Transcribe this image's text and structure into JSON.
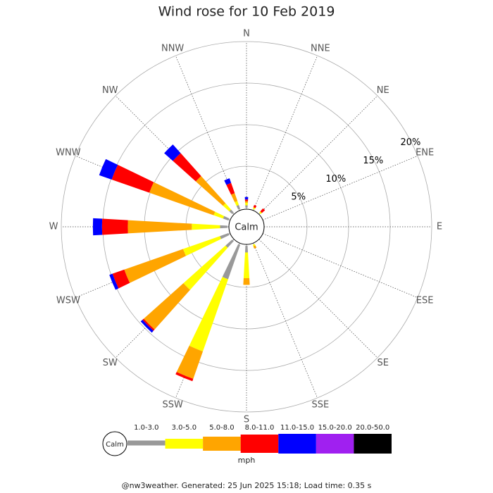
{
  "chart_data": {
    "type": "windrose",
    "title": "Wind rose for 10 Feb 2019",
    "calm_label": "Calm",
    "categories": [
      "N",
      "NNE",
      "NE",
      "ENE",
      "E",
      "ESE",
      "SE",
      "SSE",
      "S",
      "SSW",
      "SW",
      "WSW",
      "W",
      "WNW",
      "NW",
      "NNW"
    ],
    "series": [
      {
        "name": "1.0-3.0",
        "color": "#999999",
        "values": [
          0.3,
          0,
          0,
          0,
          0,
          0,
          0,
          0,
          0.8,
          4.4,
          1.1,
          1.1,
          0.9,
          0.7,
          0.5,
          0.5
        ]
      },
      {
        "name": "3.0-5.0",
        "color": "#ffff00",
        "values": [
          0.3,
          0.2,
          0.2,
          0,
          0,
          0,
          0,
          0.2,
          3.1,
          9.2,
          6.8,
          4.7,
          3.4,
          1.2,
          1.0,
          0.5
        ]
      },
      {
        "name": "5.0-8.0",
        "color": "#ffa500",
        "values": [
          0.2,
          0,
          0,
          0,
          0,
          0,
          0,
          0.3,
          0.8,
          3.5,
          6.4,
          7.5,
          7.7,
          8.2,
          4.4,
          1.0
        ]
      },
      {
        "name": "8.0-11.0",
        "color": "#ff0000",
        "values": [
          0.2,
          0.3,
          0.5,
          0,
          0,
          0,
          0,
          0,
          0,
          0.3,
          0.2,
          1.5,
          3.1,
          4.8,
          3.7,
          1.3
        ]
      },
      {
        "name": "11.0-15.0",
        "color": "#0000ff",
        "values": [
          0.3,
          0,
          0,
          0,
          0,
          0,
          0,
          0,
          0,
          0,
          0.3,
          0.4,
          1.1,
          1.6,
          1.4,
          0.6
        ]
      },
      {
        "name": "15.0-20.0",
        "color": "#a020f0",
        "values": [
          0,
          0,
          0,
          0,
          0,
          0,
          0,
          0,
          0,
          0,
          0,
          0,
          0,
          0,
          0,
          0
        ]
      },
      {
        "name": "20.0-50.0",
        "color": "#000000",
        "values": [
          0,
          0,
          0,
          0,
          0,
          0,
          0,
          0,
          0,
          0,
          0,
          0,
          0,
          0,
          0,
          0
        ]
      }
    ],
    "rlim": [
      0,
      20
    ],
    "rticks": [
      {
        "value": 5,
        "label": "5%"
      },
      {
        "value": 10,
        "label": "10%"
      },
      {
        "value": 15,
        "label": "15%"
      },
      {
        "value": 20,
        "label": "20%"
      }
    ],
    "legend_unit": "mph",
    "footer": "@nw3weather. Generated: 25 Jun 2025 15:18; Load time: 0.35 s"
  }
}
